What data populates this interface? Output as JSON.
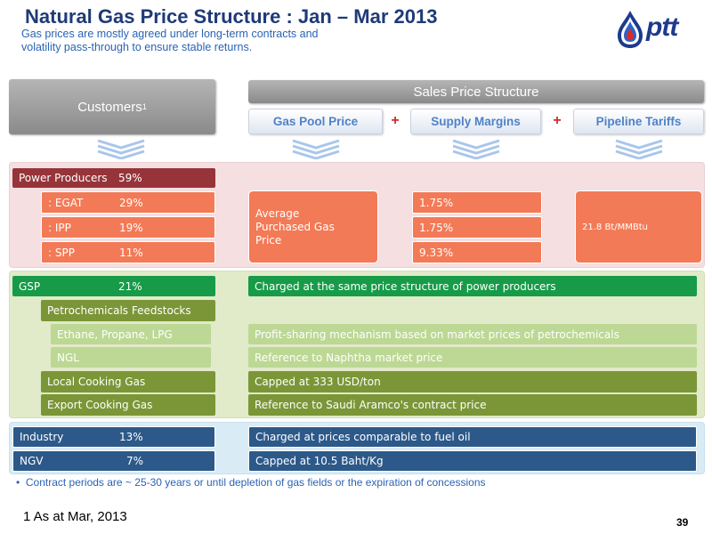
{
  "header": {
    "title": "Natural Gas Price Structure : Jan – Mar 2013",
    "subtitle": "Gas prices are mostly agreed under long-term contracts and volatility pass-through to ensure stable returns."
  },
  "logo": {
    "text": "ptt"
  },
  "customers_header": {
    "label": "Customers",
    "sup": "1"
  },
  "sales_header": {
    "label": "Sales Price Structure"
  },
  "components": {
    "gas_pool": "Gas Pool Price",
    "supply_margins": "Supply Margins",
    "pipeline_tariffs": "Pipeline Tariffs",
    "plus": "+"
  },
  "power": {
    "label": "Power Producers",
    "pct": "59%",
    "rows": [
      {
        "label": ": EGAT",
        "pct": "29%",
        "margin": "1.75%"
      },
      {
        "label": ": IPP",
        "pct": "19%",
        "margin": "1.75%"
      },
      {
        "label": ": SPP",
        "pct": "11%",
        "margin": "9.33%"
      }
    ],
    "gas_pool_text": "Average Purchased Gas Price",
    "tariff_text": "21.8 Bt/MMBtu"
  },
  "gsp": {
    "label": "GSP",
    "pct": "21%",
    "desc": "Charged at the same price structure of power producers",
    "petro_label": "Petrochemicals Feedstocks",
    "ethane_label": "Ethane, Propane, LPG",
    "ethane_desc": "Profit-sharing mechanism based on market prices of petrochemicals",
    "ngl_label": "NGL",
    "ngl_desc": "Reference to Naphtha market price",
    "local_label": "Local Cooking Gas",
    "local_desc": "Capped at 333 USD/ton",
    "export_label": "Export Cooking Gas",
    "export_desc": "Reference to Saudi Aramco's contract price"
  },
  "industry": {
    "label": "Industry",
    "pct": "13%",
    "desc": "Charged at prices comparable to fuel oil"
  },
  "ngv": {
    "label": "NGV",
    "pct": "7%",
    "desc": "Capped at 10.5 Baht/Kg"
  },
  "bullet": "Contract periods are ~ 25-30 years or until depletion of gas fields or the expiration of concessions",
  "footnote": "1  As  at Mar, 2013",
  "page_number": "39",
  "colors": {
    "title": "#1f3a78",
    "subtitle": "#2a63b4",
    "power_header": "#96343a",
    "power_rows": "#f37a56",
    "gsp": "#179b48",
    "cooking": "#7b9637",
    "petro_light": "#bcd894",
    "industry_ngv": "#2c5989",
    "plus": "#d12b2b"
  }
}
